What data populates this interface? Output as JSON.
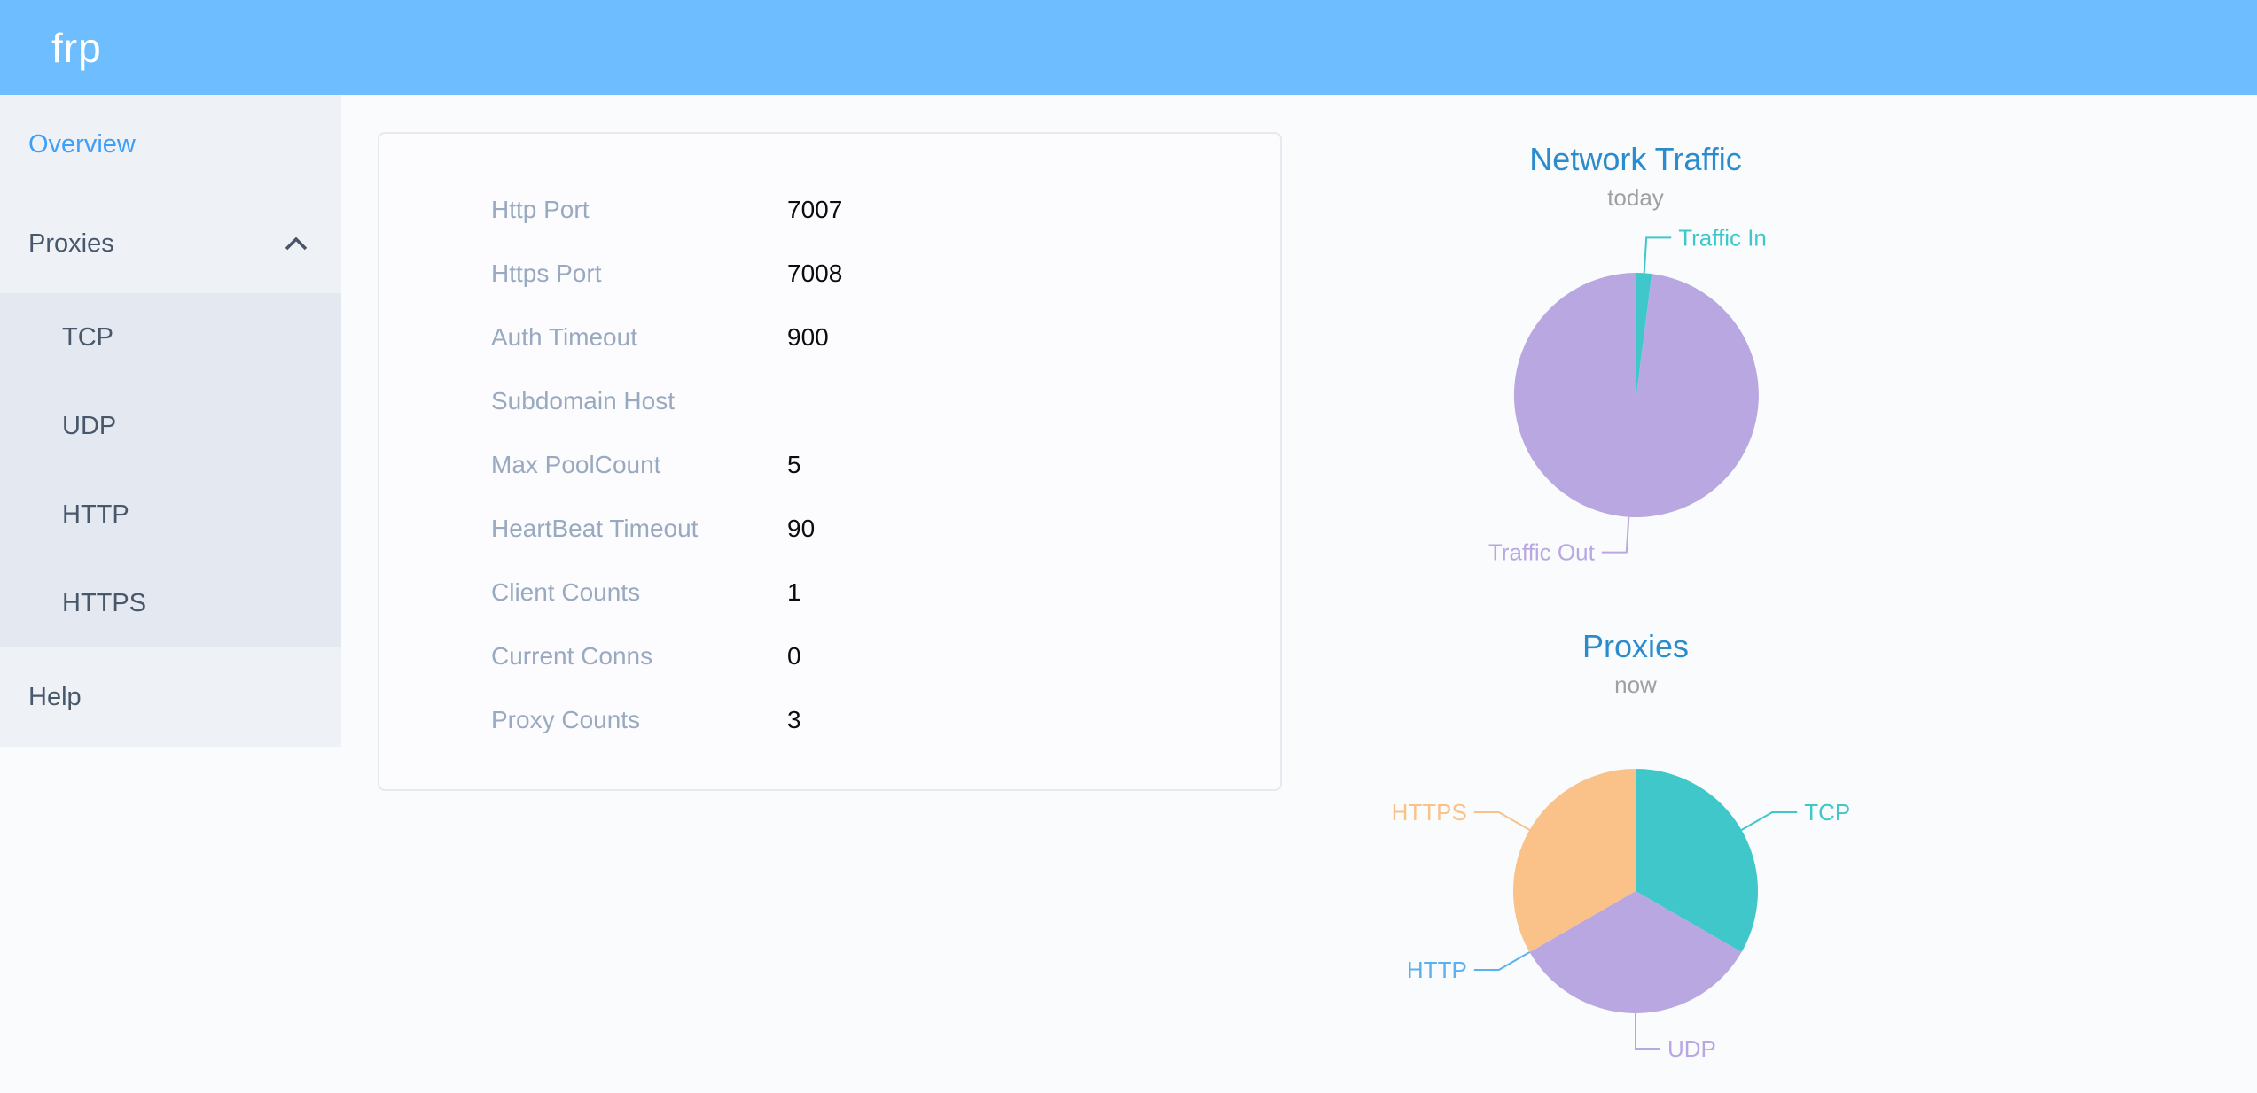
{
  "header": {
    "logo": "frp"
  },
  "sidebar": {
    "overview": "Overview",
    "proxies": "Proxies",
    "sub": [
      "TCP",
      "UDP",
      "HTTP",
      "HTTPS"
    ],
    "help": "Help",
    "icons": {
      "proxies_state": "chevron-up"
    }
  },
  "overview_card": {
    "rows": [
      {
        "label": "Http Port",
        "value": "7007"
      },
      {
        "label": "Https Port",
        "value": "7008"
      },
      {
        "label": "Auth Timeout",
        "value": "900"
      },
      {
        "label": "Subdomain Host",
        "value": ""
      },
      {
        "label": "Max PoolCount",
        "value": "5"
      },
      {
        "label": "HeartBeat Timeout",
        "value": "90"
      },
      {
        "label": "Client Counts",
        "value": "1"
      },
      {
        "label": "Current Conns",
        "value": "0"
      },
      {
        "label": "Proxy Counts",
        "value": "3"
      }
    ]
  },
  "chart_data": [
    {
      "type": "pie",
      "title": "Network Traffic",
      "subtitle": "today",
      "categories": [
        "Traffic In",
        "Traffic Out"
      ],
      "values": [
        2,
        98
      ],
      "values_note": "percent share estimated from slice angles",
      "colors": [
        "#3fc7ca",
        "#b9a7e2"
      ],
      "legend_position": "callout-labels"
    },
    {
      "type": "pie",
      "title": "Proxies",
      "subtitle": "now",
      "categories": [
        "TCP",
        "UDP",
        "HTTP",
        "HTTPS"
      ],
      "values": [
        1,
        1,
        0,
        1
      ],
      "colors": [
        "#3fc7ca",
        "#b9a7e2",
        "#5ab1ef",
        "#fac189"
      ],
      "legend_position": "callout-labels"
    }
  ],
  "colors": {
    "header_bg": "#6ebdff",
    "sidebar_bg": "#eef1f6",
    "submenu_bg": "#e4e8f1",
    "active_item": "#3f9ef7",
    "chart_title": "#2b8ccd",
    "card_label": "#99a9bf"
  }
}
